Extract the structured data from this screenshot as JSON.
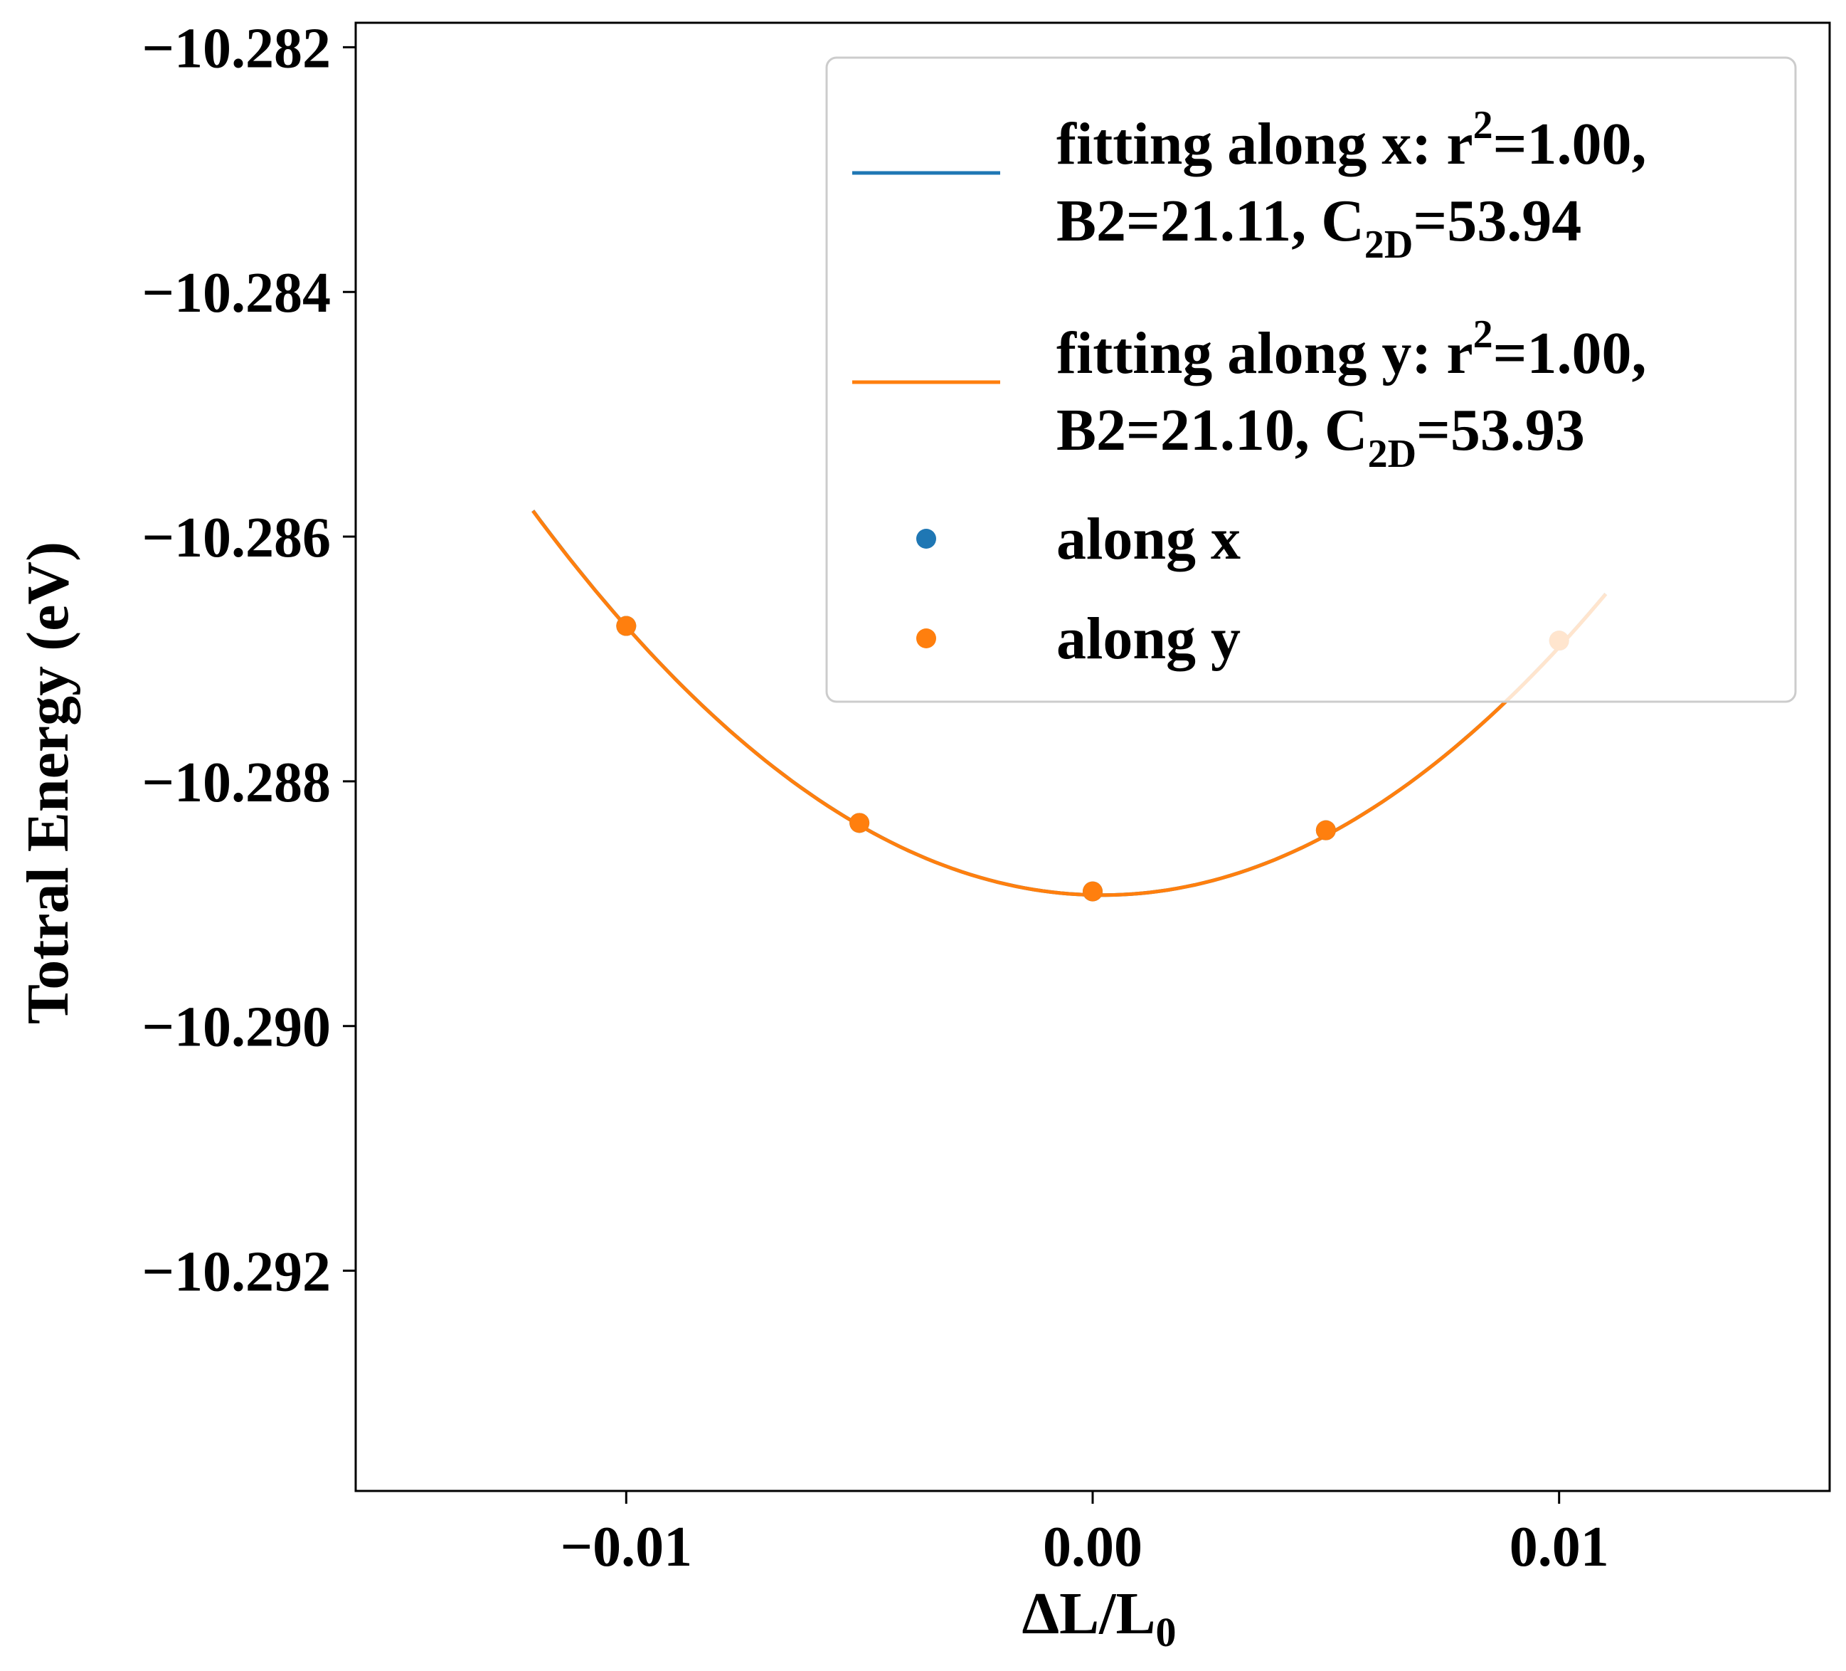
{
  "chart_data": {
    "type": "line",
    "xlabel": "ΔL/L",
    "xlabel_sub": "0",
    "ylabel": "Totral Energy (eV)",
    "xlim": [
      -0.0158,
      0.0158
    ],
    "ylim": [
      -10.2938,
      -10.2818
    ],
    "xticks": [
      -0.01,
      0.0,
      0.01
    ],
    "xtick_labels": [
      "−0.01",
      "0.00",
      "0.01"
    ],
    "yticks": [
      -10.282,
      -10.284,
      -10.286,
      -10.288,
      -10.29,
      -10.292
    ],
    "ytick_labels": [
      "−10.282",
      "−10.284",
      "−10.286",
      "−10.288",
      "−10.290",
      "−10.292"
    ],
    "grid": false,
    "legend_position": "upper right",
    "fit_curves": [
      {
        "legend_line1": "fitting along x: r",
        "legend_sup": "2",
        "legend_line1_end": "=1.00,",
        "legend_line2_start": "B2=21.11, C",
        "legend_sub": "2D",
        "legend_line2_end": "=53.94",
        "color": "#1f77b4",
        "x_range": [
          -0.012,
          0.011
        ],
        "vertex_x": 0.0002,
        "vertex_y": -10.28893,
        "curvature": 21.11
      },
      {
        "legend_line1": "fitting along y: r",
        "legend_sup": "2",
        "legend_line1_end": "=1.00,",
        "legend_line2_start": "B2=21.10, C",
        "legend_sub": "2D",
        "legend_line2_end": "=53.93",
        "color": "#ff7f0e",
        "x_range": [
          -0.012,
          0.011
        ],
        "vertex_x": 0.0002,
        "vertex_y": -10.28893,
        "curvature": 21.1
      }
    ],
    "scatter_series": [
      {
        "name": "along x",
        "color": "#1f77b4",
        "x": [
          -0.01,
          -0.005,
          0.0,
          0.005,
          0.01
        ],
        "y": [
          -10.28673,
          -10.28834,
          -10.2889,
          -10.2884,
          -10.28685
        ]
      },
      {
        "name": "along y",
        "color": "#ff7f0e",
        "x": [
          -0.01,
          -0.005,
          0.0,
          0.005,
          0.01
        ],
        "y": [
          -10.28673,
          -10.28834,
          -10.2889,
          -10.2884,
          -10.28685
        ]
      }
    ]
  }
}
